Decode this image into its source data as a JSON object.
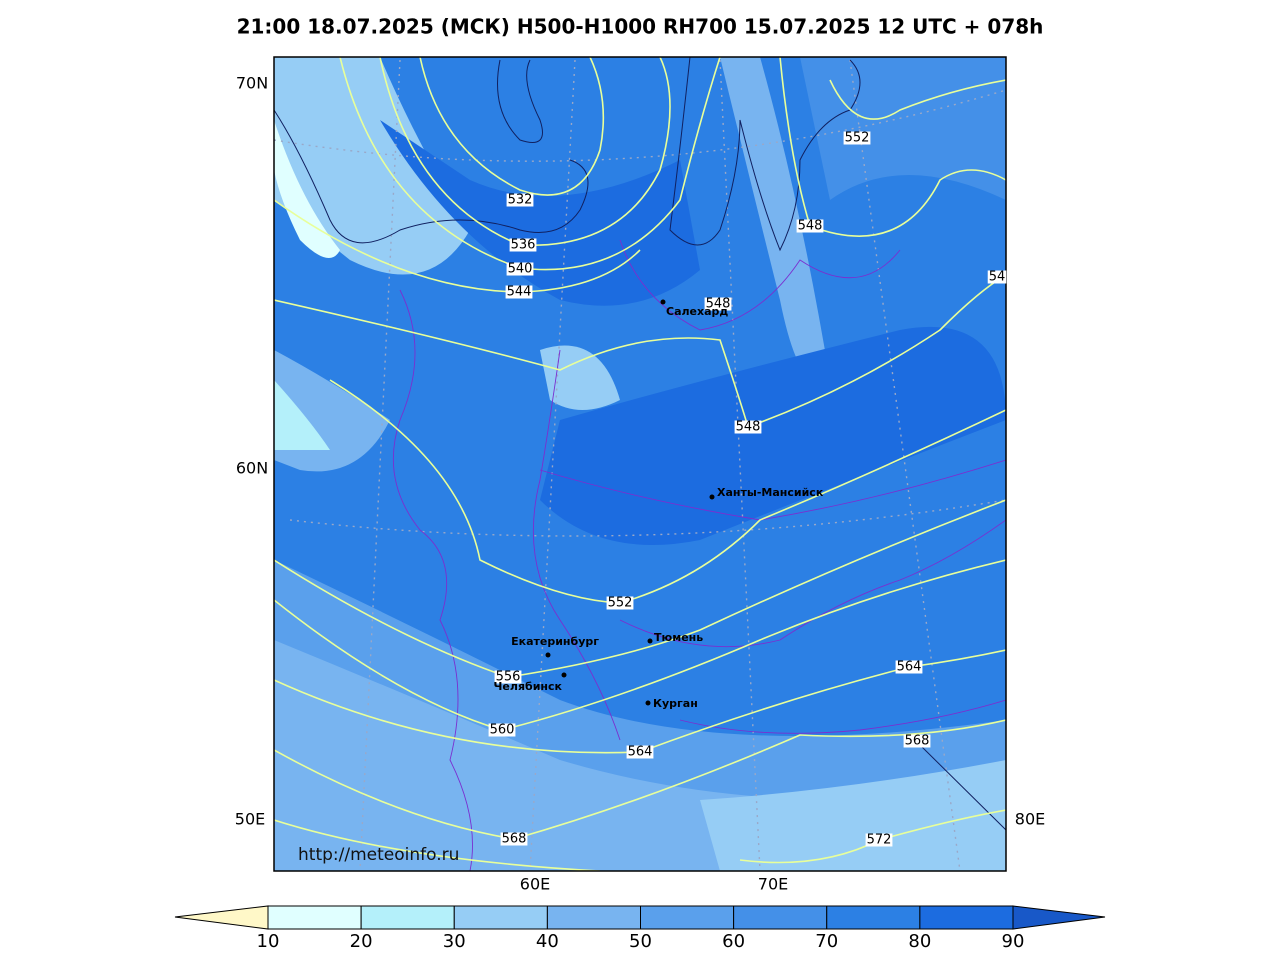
{
  "map": {
    "title": "21:00 18.07.2025 (МСК) H500-H1000 RH700 15.07.2025 12 UTC + 078h",
    "url": "http://meteoinfo.ru",
    "axis_labels": [
      "70N",
      "60N",
      "50E",
      "60E",
      "70E",
      "80E"
    ],
    "contour_labels": [
      "532",
      "536",
      "540",
      "544",
      "548",
      "548",
      "548",
      "552",
      "54",
      "552",
      "556",
      "560",
      "564",
      "564",
      "568",
      "568",
      "572"
    ],
    "cities": [
      "Салехард",
      "Ханты-Мансийск",
      "Тюмень",
      "Екатеринбург",
      "Челябинск",
      "Курган"
    ],
    "colorbar": {
      "ticks": [
        10,
        20,
        30,
        40,
        50,
        60,
        70,
        80,
        90
      ],
      "colors": [
        "#fff8c8",
        "#e0ffff",
        "#b4f0fa",
        "#96cdf5",
        "#78b4f0",
        "#5aa0ec",
        "#4490e8",
        "#2c80e4",
        "#1c6ce0",
        "#1858c8"
      ]
    }
  }
}
